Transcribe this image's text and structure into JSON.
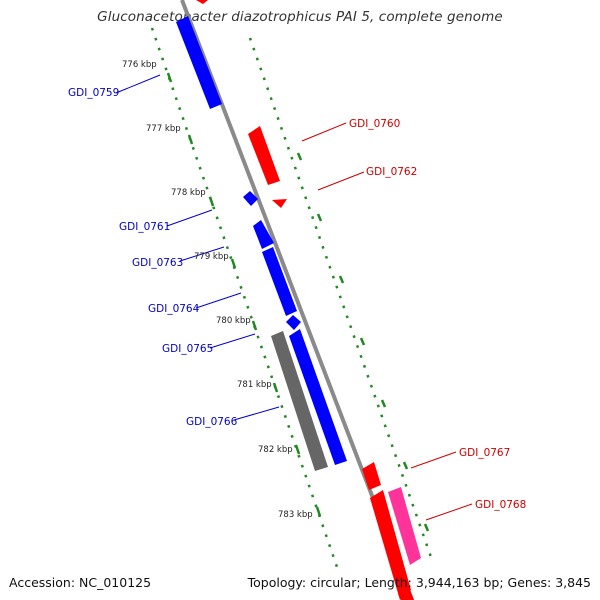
{
  "title": "Gluconacetobacter diazotrophicus PAI 5, complete genome",
  "footer": {
    "accession": "Accession: NC_010125",
    "summary": "Topology: circular; Length: 3,944,163 bp; Genes: 3,845"
  },
  "colors": {
    "backbone": "#8a8a8a",
    "reverse_strand": "#0000ff",
    "forward_strand": "#ff0000",
    "rna_gene": "#ff3399",
    "other_feature": "#666666",
    "tick": "#228822"
  },
  "scale_ticks": [
    "776 kbp",
    "777 kbp",
    "778 kbp",
    "779 kbp",
    "780 kbp",
    "781 kbp",
    "782 kbp",
    "783 kbp"
  ],
  "genes_left": [
    "GDI_0759",
    "GDI_0761",
    "GDI_0763",
    "GDI_0764",
    "GDI_0765",
    "GDI_0766"
  ],
  "genes_right": [
    "GDI_0760",
    "GDI_0762",
    "GDI_0767",
    "GDI_0768"
  ]
}
